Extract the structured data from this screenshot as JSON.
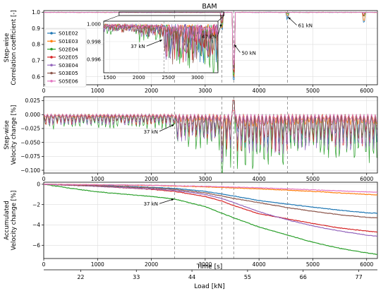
{
  "figure": {
    "title": "BAM",
    "xlabel_time": "Time [s]",
    "xlabel_load": "Load [kN]",
    "load_ticks": [
      "22",
      "33",
      "44",
      "55",
      "66",
      "77"
    ]
  },
  "colors": {
    "S01E02": "#1f77b4",
    "S01E03": "#ff7f0e",
    "S02E04": "#2ca02c",
    "S02E05": "#d62728",
    "S03E04": "#9467bd",
    "S03E05": "#8c564b",
    "S05E06": "#e377c2"
  },
  "legend": [
    "S01E02",
    "S01E03",
    "S02E04",
    "S02E05",
    "S03E04",
    "S03E05",
    "S05E06"
  ],
  "event_lines_s": [
    2430,
    3310,
    3530,
    4530
  ],
  "chart_data": [
    {
      "type": "line",
      "id": "correlation",
      "ylabel": [
        "Step-wise",
        "Correlation coefficient [-]"
      ],
      "xlim": [
        0,
        6200
      ],
      "ylim": [
        0.55,
        1.01
      ],
      "xticks": [
        0,
        1000,
        2000,
        3000,
        4000,
        5000,
        6000
      ],
      "yticks": [
        0.6,
        0.7,
        0.8,
        0.9,
        1.0
      ],
      "ytick_labels": [
        "0.6",
        "0.7",
        "0.8",
        "0.9",
        "1.0"
      ],
      "annotations": [
        {
          "text": "47 kN",
          "x": 3310,
          "y": 0.92
        },
        {
          "text": "50 kN",
          "x": 3530,
          "y": 0.78
        },
        {
          "text": "61 kN",
          "x": 4530,
          "y": 0.97
        }
      ],
      "inset": {
        "xlim": [
          1400,
          3350
        ],
        "ylim": [
          0.9945,
          1.0003
        ],
        "xticks": [
          1500,
          2000,
          2500,
          3000
        ],
        "yticks": [
          0.996,
          0.998,
          1.0
        ],
        "ytick_labels": [
          "0.996",
          "0.998",
          "1.000"
        ],
        "annotation": {
          "text": "37 kN",
          "x": 2430,
          "y": 0.998
        }
      }
    },
    {
      "type": "line",
      "id": "stepwise_velocity",
      "ylabel": [
        "Step-wise",
        "Velocity change [%]"
      ],
      "xlim": [
        0,
        6200
      ],
      "ylim": [
        -0.105,
        0.032
      ],
      "xticks": [
        0,
        1000,
        2000,
        3000,
        4000,
        5000,
        6000
      ],
      "yticks": [
        -0.1,
        -0.075,
        -0.05,
        -0.025,
        0.0,
        0.025
      ],
      "ytick_labels": [
        "−0.100",
        "−0.075",
        "−0.050",
        "−0.025",
        "0.000",
        "0.025"
      ],
      "annotations": [
        {
          "text": "37 kN",
          "x": 2430,
          "y": -0.015
        }
      ]
    },
    {
      "type": "line",
      "id": "accumulated_velocity",
      "ylabel": [
        "Accumulated",
        "Velocity change [%]"
      ],
      "xlim": [
        0,
        6200
      ],
      "ylim": [
        -7.3,
        0.2
      ],
      "xticks": [
        0,
        1000,
        2000,
        3000,
        4000,
        5000,
        6000
      ],
      "yticks": [
        -6,
        -4,
        -2,
        0
      ],
      "ytick_labels": [
        "−6",
        "−4",
        "−2",
        "0"
      ],
      "annotations": [
        {
          "text": "37 kN",
          "x": 2430,
          "y": -1.3
        }
      ],
      "series": [
        {
          "name": "S01E02",
          "x": [
            0,
            1000,
            2000,
            2430,
            3000,
            3310,
            3530,
            4000,
            4530,
            5000,
            5500,
            6000,
            6200
          ],
          "y": [
            0,
            -0.1,
            -0.3,
            -0.4,
            -0.7,
            -0.95,
            -1.15,
            -1.6,
            -1.95,
            -2.25,
            -2.55,
            -2.8,
            -2.85
          ]
        },
        {
          "name": "S01E03",
          "x": [
            0,
            1000,
            2000,
            3000,
            4000,
            5000,
            6000,
            6200
          ],
          "y": [
            0,
            -0.05,
            -0.12,
            -0.25,
            -0.45,
            -0.7,
            -1.0,
            -1.05
          ]
        },
        {
          "name": "S02E04",
          "x": [
            0,
            500,
            1000,
            2000,
            2430,
            3000,
            3310,
            3530,
            4000,
            4530,
            5000,
            5500,
            6000,
            6200
          ],
          "y": [
            0,
            -0.4,
            -0.75,
            -1.2,
            -1.45,
            -2.2,
            -2.85,
            -3.3,
            -4.2,
            -5.0,
            -5.7,
            -6.3,
            -6.75,
            -6.9
          ]
        },
        {
          "name": "S02E05",
          "x": [
            0,
            1000,
            2000,
            2430,
            3000,
            3310,
            3530,
            4000,
            4530,
            5000,
            5500,
            6000,
            6200
          ],
          "y": [
            0,
            -0.2,
            -0.5,
            -0.7,
            -1.2,
            -1.65,
            -2.1,
            -2.9,
            -3.4,
            -3.85,
            -4.3,
            -4.6,
            -4.7
          ]
        },
        {
          "name": "S03E04",
          "x": [
            0,
            1000,
            2000,
            2430,
            3000,
            3310,
            3530,
            4000,
            4530,
            5000,
            5500,
            6000,
            6200
          ],
          "y": [
            0,
            -0.2,
            -0.45,
            -0.6,
            -1.0,
            -1.4,
            -1.8,
            -2.7,
            -3.5,
            -4.1,
            -4.6,
            -5.0,
            -5.1
          ]
        },
        {
          "name": "S03E05",
          "x": [
            0,
            1000,
            2000,
            2430,
            3000,
            3310,
            3530,
            4000,
            4530,
            5000,
            5500,
            6000,
            6200
          ],
          "y": [
            0,
            -0.15,
            -0.35,
            -0.5,
            -0.85,
            -1.15,
            -1.4,
            -1.8,
            -2.3,
            -2.65,
            -3.0,
            -3.25,
            -3.3
          ]
        },
        {
          "name": "S05E06",
          "x": [
            0,
            1000,
            2000,
            3000,
            4000,
            5000,
            6000,
            6200
          ],
          "y": [
            0,
            -0.05,
            -0.1,
            -0.2,
            -0.35,
            -0.55,
            -0.75,
            -0.8
          ]
        }
      ]
    }
  ]
}
